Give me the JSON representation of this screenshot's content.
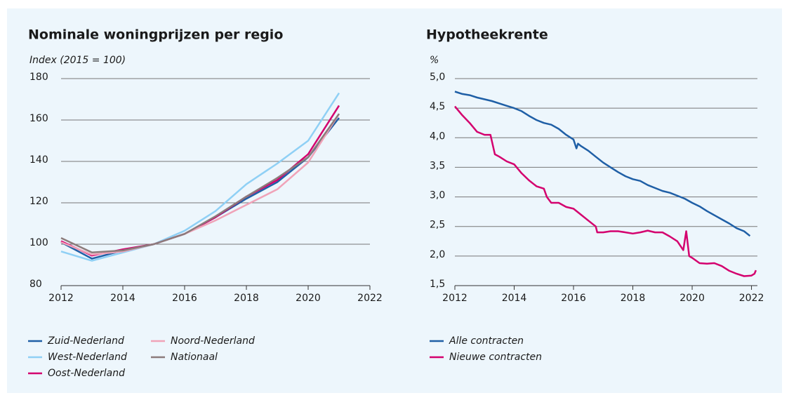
{
  "chart_data": [
    {
      "type": "line",
      "title": "Nominale woningprijzen per regio",
      "y_label": "Index (2015 = 100)",
      "x": [
        2012,
        2013,
        2014,
        2015,
        2016,
        2017,
        2018,
        2019,
        2020,
        2021
      ],
      "series": [
        {
          "name": "Zuid-Nederland",
          "color": "#1f5fa6",
          "values": [
            101,
            93,
            97,
            100,
            105,
            113,
            122,
            130,
            142,
            161
          ]
        },
        {
          "name": "West-Nederland",
          "color": "#8fd0f5",
          "values": [
            96.5,
            92,
            96,
            100,
            106.5,
            116,
            129,
            139,
            150,
            173
          ]
        },
        {
          "name": "Oost-Nederland",
          "color": "#d4006e",
          "values": [
            101.5,
            94.5,
            97.5,
            100,
            105,
            113,
            123,
            131,
            143.5,
            167
          ]
        },
        {
          "name": "Noord-Nederland",
          "color": "#f0a3b8",
          "values": [
            101,
            95,
            96.5,
            100,
            105,
            111.5,
            119,
            126.5,
            139.5,
            163
          ]
        },
        {
          "name": "Nationaal",
          "color": "#8c7b7b",
          "values": [
            103,
            96,
            97,
            100,
            105,
            113.5,
            123,
            132,
            142,
            163
          ]
        }
      ],
      "xlim": [
        2012,
        2022
      ],
      "xticks": [
        2012,
        2014,
        2016,
        2018,
        2020,
        2022
      ],
      "ylim": [
        80,
        180
      ],
      "yticks": [
        80,
        100,
        120,
        140,
        160,
        180
      ],
      "grid": true
    },
    {
      "type": "line",
      "title": "Hypotheekrente",
      "y_label": "%",
      "series": [
        {
          "name": "Alle contracten",
          "color": "#1f5fa6",
          "x": [
            2012,
            2012.25,
            2012.5,
            2012.75,
            2013,
            2013.25,
            2013.5,
            2013.75,
            2014,
            2014.25,
            2014.5,
            2014.75,
            2015,
            2015.25,
            2015.5,
            2015.75,
            2016,
            2016.1,
            2016.15,
            2016.25,
            2016.5,
            2016.75,
            2017,
            2017.25,
            2017.5,
            2017.75,
            2018,
            2018.25,
            2018.5,
            2018.75,
            2019,
            2019.25,
            2019.5,
            2019.75,
            2020,
            2020.25,
            2020.5,
            2020.75,
            2021,
            2021.25,
            2021.5,
            2021.75,
            2021.95
          ],
          "values": [
            4.78,
            4.74,
            4.72,
            4.68,
            4.65,
            4.62,
            4.58,
            4.54,
            4.5,
            4.45,
            4.37,
            4.3,
            4.25,
            4.22,
            4.15,
            4.05,
            3.97,
            3.82,
            3.9,
            3.86,
            3.78,
            3.68,
            3.58,
            3.5,
            3.42,
            3.35,
            3.3,
            3.27,
            3.2,
            3.15,
            3.1,
            3.07,
            3.02,
            2.97,
            2.9,
            2.84,
            2.76,
            2.69,
            2.62,
            2.55,
            2.47,
            2.42,
            2.34
          ]
        },
        {
          "name": "Nieuwe contracten",
          "color": "#d4006e",
          "x": [
            2012,
            2012.25,
            2012.5,
            2012.75,
            2013,
            2013.2,
            2013.35,
            2013.5,
            2013.75,
            2014,
            2014.25,
            2014.5,
            2014.75,
            2015,
            2015.1,
            2015.25,
            2015.5,
            2015.75,
            2016,
            2016.25,
            2016.5,
            2016.75,
            2016.8,
            2017,
            2017.25,
            2017.5,
            2017.75,
            2018,
            2018.25,
            2018.5,
            2018.75,
            2019,
            2019.25,
            2019.5,
            2019.7,
            2019.8,
            2019.9,
            2020,
            2020.25,
            2020.5,
            2020.75,
            2021,
            2021.25,
            2021.5,
            2021.75,
            2022,
            2022.1,
            2022.15
          ],
          "values": [
            4.53,
            4.38,
            4.25,
            4.1,
            4.05,
            4.05,
            3.72,
            3.68,
            3.6,
            3.55,
            3.4,
            3.28,
            3.18,
            3.14,
            3.0,
            2.9,
            2.9,
            2.83,
            2.8,
            2.7,
            2.6,
            2.5,
            2.4,
            2.4,
            2.42,
            2.42,
            2.4,
            2.38,
            2.4,
            2.43,
            2.4,
            2.4,
            2.33,
            2.25,
            2.1,
            2.42,
            2.0,
            1.97,
            1.88,
            1.87,
            1.88,
            1.83,
            1.75,
            1.7,
            1.66,
            1.67,
            1.7,
            1.76
          ]
        }
      ],
      "xlim": [
        2012,
        2022.2
      ],
      "xticks": [
        2012,
        2014,
        2016,
        2018,
        2020,
        2022
      ],
      "ylim": [
        1.5,
        5.0
      ],
      "yticks": [
        {
          "value": 1.5,
          "label": "1,5"
        },
        {
          "value": 2.0,
          "label": "2,0"
        },
        {
          "value": 2.5,
          "label": "2,5"
        },
        {
          "value": 3.0,
          "label": "3,0"
        },
        {
          "value": 3.5,
          "label": "3,5"
        },
        {
          "value": 4.0,
          "label": "4,0"
        },
        {
          "value": 4.5,
          "label": "4,5"
        },
        {
          "value": 5.0,
          "label": "5,0"
        }
      ],
      "grid": true
    }
  ]
}
